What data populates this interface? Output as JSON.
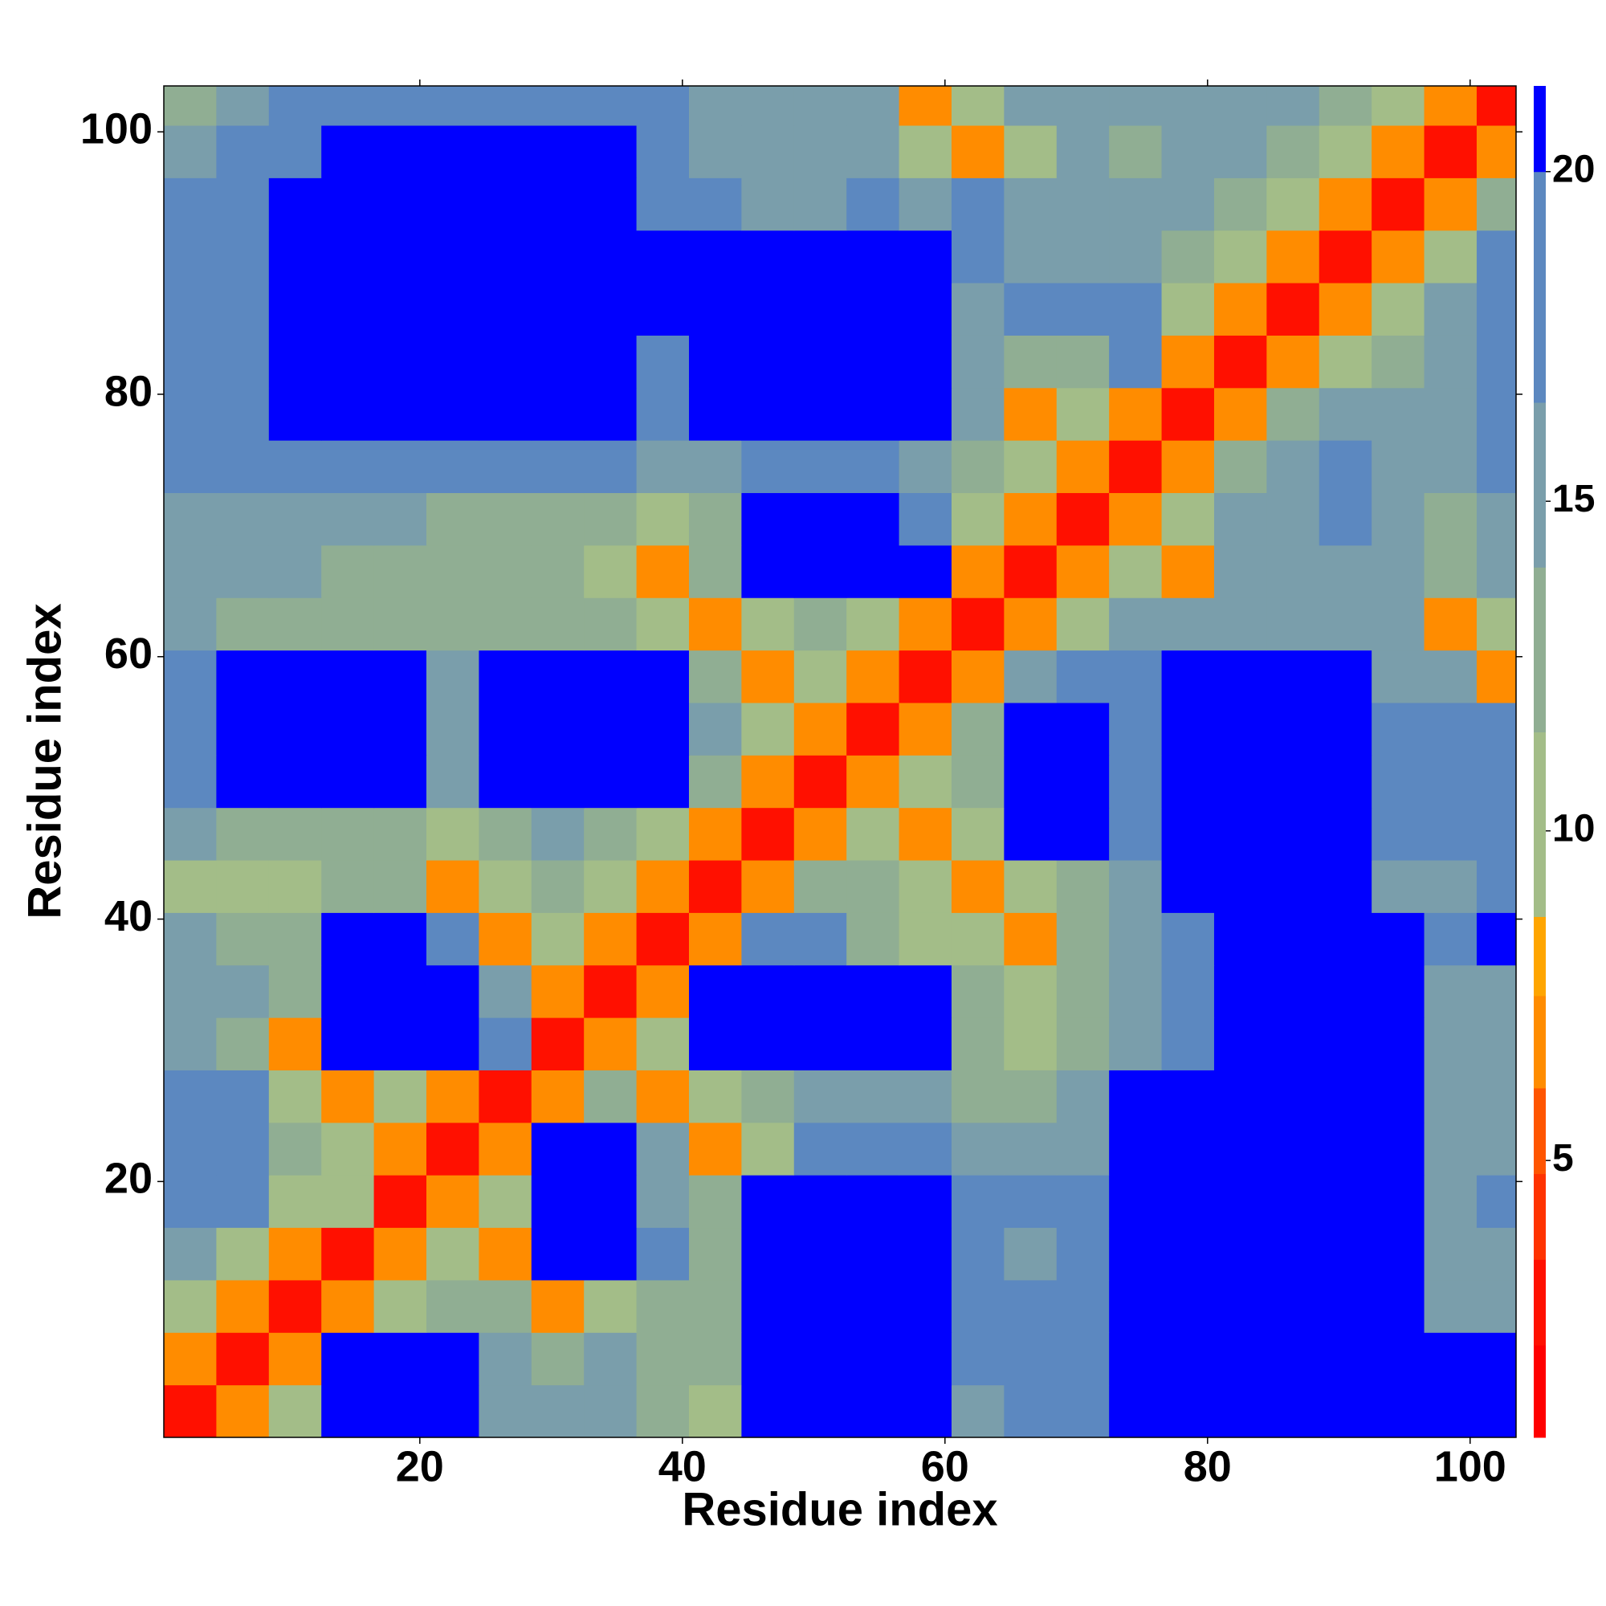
{
  "chart_data": {
    "type": "heatmap",
    "xlabel": "Residue index",
    "ylabel": "Residue index",
    "x": [
      2.5,
      6.5,
      10.5,
      14.5,
      18.5,
      22.5,
      26.5,
      30.5,
      34.5,
      38.5,
      42.5,
      46.5,
      50.5,
      54.5,
      58.5,
      62.5,
      66.5,
      70.5,
      74.5,
      78.5,
      82.5,
      86.5,
      90.5,
      94.5,
      98.5,
      102.5
    ],
    "y": [
      2.5,
      6.5,
      10.5,
      14.5,
      18.5,
      22.5,
      26.5,
      30.5,
      34.5,
      38.5,
      42.5,
      46.5,
      50.5,
      54.5,
      58.5,
      62.5,
      66.5,
      70.5,
      74.5,
      78.5,
      82.5,
      86.5,
      90.5,
      94.5,
      98.5,
      102.5
    ],
    "z": [
      [
        3,
        7,
        11,
        21,
        21,
        21,
        14,
        14,
        15,
        13,
        11,
        21,
        21,
        21,
        21,
        16,
        18,
        18,
        21,
        21,
        21,
        21,
        21,
        21,
        21,
        21
      ],
      [
        7,
        3,
        7,
        21,
        21,
        21,
        14,
        12,
        14,
        13,
        12,
        21,
        21,
        21,
        21,
        17,
        18,
        18,
        21,
        21,
        21,
        21,
        21,
        21,
        21,
        21
      ],
      [
        11,
        7,
        3,
        7,
        11,
        13,
        12,
        7,
        11,
        12,
        12,
        21,
        21,
        21,
        21,
        17,
        17,
        18,
        21,
        21,
        21,
        21,
        21,
        21,
        15,
        15
      ],
      [
        16,
        11,
        7,
        3,
        7,
        11,
        7,
        21,
        21,
        17,
        13,
        21,
        21,
        21,
        21,
        17,
        16,
        17,
        21,
        21,
        21,
        21,
        21,
        21,
        15,
        15
      ],
      [
        19,
        19,
        11,
        11,
        3,
        7,
        11,
        21,
        21,
        16,
        13,
        21,
        21,
        21,
        21,
        17,
        18,
        18,
        21,
        21,
        21,
        21,
        21,
        21,
        15,
        17
      ],
      [
        19,
        19,
        12,
        11,
        7,
        3,
        7,
        21,
        21,
        15,
        7,
        11,
        18,
        18,
        18,
        16,
        15,
        16,
        21,
        21,
        21,
        21,
        21,
        21,
        15,
        15
      ],
      [
        19,
        19,
        11,
        7,
        11,
        7,
        3,
        7,
        13,
        7,
        11,
        12,
        15,
        16,
        15,
        13,
        13,
        14,
        21,
        21,
        21,
        21,
        21,
        21,
        15,
        15
      ],
      [
        15,
        13,
        7,
        21,
        21,
        21,
        17,
        3,
        7,
        11,
        21,
        21,
        21,
        21,
        21,
        12,
        11,
        12,
        15,
        17,
        21,
        21,
        21,
        21,
        15,
        15
      ],
      [
        16,
        15,
        13,
        21,
        21,
        21,
        16,
        7,
        3,
        7,
        21,
        21,
        21,
        21,
        21,
        13,
        11,
        13,
        15,
        17,
        21,
        21,
        21,
        21,
        16,
        16
      ],
      [
        14,
        12,
        12,
        21,
        21,
        17,
        7,
        11,
        7,
        3,
        7,
        17,
        17,
        13,
        11,
        11,
        7,
        13,
        16,
        17,
        21,
        21,
        21,
        21,
        17,
        21
      ],
      [
        11,
        9,
        11,
        12,
        13,
        7,
        11,
        13,
        11,
        7,
        3,
        7,
        13,
        13,
        11,
        7,
        11,
        13,
        15,
        21,
        21,
        21,
        21,
        16,
        15,
        17
      ],
      [
        14,
        13,
        13,
        12,
        12,
        11,
        13,
        15,
        13,
        11,
        7,
        3,
        7,
        11,
        7,
        11,
        21,
        21,
        18,
        21,
        21,
        21,
        21,
        17,
        17,
        18
      ],
      [
        19,
        21,
        21,
        21,
        21,
        15,
        21,
        21,
        21,
        21,
        13,
        7,
        3,
        7,
        11,
        13,
        21,
        21,
        18,
        21,
        21,
        21,
        21,
        17,
        18,
        18
      ],
      [
        19,
        21,
        21,
        21,
        21,
        16,
        21,
        21,
        21,
        21,
        14,
        11,
        7,
        3,
        7,
        13,
        21,
        21,
        18,
        21,
        21,
        21,
        21,
        17,
        17,
        17
      ],
      [
        17,
        21,
        21,
        21,
        21,
        15,
        21,
        21,
        21,
        21,
        13,
        7,
        11,
        7,
        3,
        7,
        14,
        17,
        18,
        21,
        21,
        21,
        21,
        16,
        15,
        7
      ],
      [
        14,
        13,
        13,
        13,
        13,
        12,
        12,
        12,
        12,
        11,
        7,
        11,
        13,
        11,
        7,
        3,
        7,
        11,
        14,
        16,
        16,
        15,
        15,
        14,
        7,
        9
      ],
      [
        15,
        14,
        14,
        13,
        13,
        12,
        12,
        12,
        11,
        7,
        12,
        21,
        21,
        21,
        21,
        7,
        3,
        7,
        11,
        7,
        14,
        15,
        16,
        16,
        13,
        16
      ],
      [
        16,
        15,
        15,
        14,
        14,
        13,
        13,
        12,
        12,
        11,
        13,
        21,
        21,
        21,
        18,
        9,
        7,
        3,
        7,
        9,
        14,
        16,
        17,
        16,
        12,
        16
      ],
      [
        17,
        17,
        18,
        18,
        18,
        18,
        18,
        18,
        18,
        14,
        15,
        17,
        17,
        18,
        15,
        12,
        11,
        7,
        3,
        7,
        13,
        16,
        17,
        16,
        15,
        17
      ],
      [
        17,
        17,
        21,
        21,
        21,
        21,
        21,
        21,
        21,
        17,
        21,
        21,
        21,
        21,
        21,
        14,
        7,
        9,
        7,
        3,
        7,
        12,
        15,
        16,
        14,
        17
      ],
      [
        17,
        17,
        21,
        21,
        21,
        21,
        21,
        21,
        21,
        19,
        21,
        21,
        21,
        21,
        21,
        15,
        13,
        13,
        17,
        7,
        3,
        7,
        11,
        13,
        14,
        19
      ],
      [
        18,
        18,
        21,
        21,
        21,
        21,
        21,
        21,
        21,
        21,
        21,
        21,
        21,
        21,
        21,
        16,
        17,
        17,
        19,
        11,
        7,
        3,
        7,
        11,
        14,
        19
      ],
      [
        19,
        19,
        21,
        21,
        21,
        21,
        21,
        21,
        21,
        21,
        21,
        21,
        21,
        21,
        21,
        17,
        16,
        16,
        15,
        13,
        9,
        7,
        3,
        7,
        11,
        19
      ],
      [
        19,
        19,
        21,
        21,
        21,
        21,
        21,
        21,
        21,
        19,
        17,
        16,
        16,
        17,
        16,
        17,
        16,
        15,
        15,
        14,
        12,
        11,
        7,
        3,
        7,
        13
      ],
      [
        16,
        17,
        19,
        21,
        21,
        21,
        21,
        21,
        21,
        17,
        16,
        15,
        14,
        14,
        11,
        7,
        11,
        15,
        13,
        15,
        14,
        13,
        11,
        7,
        3,
        7
      ],
      [
        13,
        15,
        17,
        17,
        18,
        17,
        18,
        18,
        19,
        17,
        15,
        15,
        15,
        14,
        7,
        11,
        14,
        15,
        16,
        15,
        14,
        15,
        13,
        11,
        7,
        3
      ]
    ],
    "xlim": [
      0.5,
      103.5
    ],
    "ylim": [
      0.5,
      103.5
    ],
    "xticks": [
      20,
      40,
      60,
      80,
      100
    ],
    "yticks": [
      20,
      40,
      60,
      80,
      100
    ],
    "colorbar": {
      "ticks": [
        5,
        10,
        15,
        20
      ],
      "levels": [
        0.8,
        2.2,
        3.5,
        4.8,
        6.1,
        7.5,
        8.7,
        11.5,
        14,
        16.5,
        20,
        21.3
      ],
      "colors": [
        "#ff0000",
        "#ff1000",
        "#ff3300",
        "#ff5500",
        "#ff8c00",
        "#ffa500",
        "#a3bd88",
        "#90ae93",
        "#7a9eab",
        "#5c88c0",
        "#0000ff"
      ]
    }
  }
}
